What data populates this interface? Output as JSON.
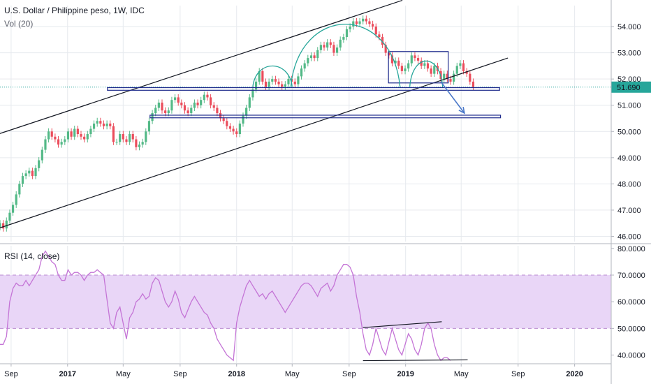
{
  "legend": {
    "title": "U.S. Dollar / Philippine peso, 1W, IDC",
    "volume": "Vol (20)",
    "rsi": "RSI (14, close)"
  },
  "colors": {
    "up": "#53b987",
    "down": "#eb4d5c",
    "channel": "#131722",
    "box": "#1e2a8c",
    "arc": "#26a69a",
    "arrow": "#4a78c9",
    "rsi": "#c474d6",
    "rsi_band": "#e9d6f7",
    "price_badge": "#26a69a",
    "grid": "#e6e9ee"
  },
  "price_badge": "51.690",
  "chart_data": [
    {
      "type": "candlestick",
      "title": "U.S. Dollar / Philippine peso, 1W, IDC",
      "x_start": "2016-08-08",
      "x_ticks": [
        {
          "date": "2016-09-01",
          "label": "Sep",
          "bold": false
        },
        {
          "date": "2017-01-01",
          "label": "2017",
          "bold": true
        },
        {
          "date": "2017-05-01",
          "label": "May",
          "bold": false
        },
        {
          "date": "2017-09-01",
          "label": "Sep",
          "bold": false
        },
        {
          "date": "2018-01-01",
          "label": "2018",
          "bold": true
        },
        {
          "date": "2018-05-01",
          "label": "May",
          "bold": false
        },
        {
          "date": "2018-09-01",
          "label": "Sep",
          "bold": false
        },
        {
          "date": "2019-01-01",
          "label": "2019",
          "bold": true
        },
        {
          "date": "2019-05-01",
          "label": "May",
          "bold": false
        },
        {
          "date": "2019-09-01",
          "label": "Sep",
          "bold": false
        },
        {
          "date": "2020-01-01",
          "label": "2020",
          "bold": true
        }
      ],
      "x_range": [
        "2016-08-08",
        "2020-03-20"
      ],
      "y_ticks": [
        "46.000",
        "47.000",
        "48.000",
        "49.000",
        "50.000",
        "51.000",
        "52.000",
        "53.000",
        "54.000"
      ],
      "ylim": [
        45.8,
        54.8
      ],
      "last_price": 51.69,
      "weekly_close": [
        46.5,
        46.3,
        46.6,
        46.9,
        47.2,
        47.6,
        48.0,
        48.3,
        48.4,
        48.5,
        48.3,
        48.6,
        48.9,
        49.3,
        49.7,
        50.0,
        49.8,
        49.7,
        49.5,
        49.6,
        49.7,
        50.0,
        49.8,
        50.1,
        49.9,
        49.8,
        49.7,
        49.9,
        50.1,
        50.3,
        50.4,
        50.3,
        50.2,
        50.3,
        50.2,
        49.6,
        49.6,
        49.9,
        49.7,
        49.6,
        49.9,
        49.7,
        49.4,
        49.5,
        49.6,
        50.0,
        50.4,
        50.7,
        50.9,
        51.1,
        50.8,
        50.7,
        50.8,
        51.2,
        51.3,
        51.1,
        51.0,
        50.8,
        50.7,
        50.9,
        51.1,
        51.0,
        51.2,
        51.4,
        51.3,
        51.0,
        50.9,
        50.7,
        50.5,
        50.4,
        50.2,
        50.1,
        50.0,
        49.9,
        50.3,
        50.6,
        50.9,
        51.3,
        51.6,
        51.9,
        52.3,
        51.9,
        51.7,
        51.9,
        52.0,
        51.9,
        51.8,
        51.7,
        51.8,
        52.0,
        51.9,
        51.8,
        52.1,
        52.4,
        52.6,
        52.8,
        52.9,
        52.8,
        53.1,
        53.3,
        53.2,
        53.4,
        53.3,
        53.0,
        53.2,
        53.5,
        53.6,
        53.9,
        54.0,
        54.2,
        54.1,
        54.2,
        54.3,
        54.2,
        54.1,
        54.0,
        53.7,
        53.6,
        53.3,
        53.0,
        52.9,
        52.6,
        52.7,
        52.5,
        52.3,
        52.4,
        52.6,
        52.9,
        52.8,
        52.7,
        52.5,
        52.6,
        52.4,
        52.2,
        52.5,
        52.3,
        52.0,
        52.2,
        52.0,
        51.9,
        52.2,
        52.5,
        52.6,
        52.3,
        52.2,
        51.9,
        51.69
      ]
    },
    {
      "type": "line",
      "title": "RSI (14, close)",
      "y_ticks": [
        "40.0000",
        "50.0000",
        "60.0000",
        "70.0000",
        "80.0000"
      ],
      "ylim": [
        37,
        81
      ],
      "band": [
        50,
        70
      ],
      "values": [
        44,
        44,
        47,
        60,
        65,
        67,
        66,
        66,
        68,
        66,
        68,
        70,
        72,
        77,
        79,
        77,
        75,
        74,
        70,
        68,
        68,
        72,
        70,
        71,
        71,
        70,
        68,
        70,
        71,
        71,
        72,
        71,
        70,
        61,
        52,
        50,
        56,
        58,
        52,
        46,
        54,
        56,
        60,
        61,
        63,
        61,
        62,
        67,
        69,
        68,
        64,
        60,
        58,
        60,
        64,
        61,
        56,
        54,
        57,
        60,
        62,
        60,
        58,
        56,
        55,
        52,
        50,
        46,
        44,
        42,
        40,
        39,
        38,
        52,
        58,
        62,
        66,
        68,
        66,
        64,
        62,
        63,
        61,
        63,
        64,
        62,
        60,
        58,
        56,
        58,
        60,
        62,
        64,
        66,
        67,
        67,
        66,
        64,
        62,
        65,
        66,
        67,
        64,
        66,
        70,
        72,
        74,
        74,
        73,
        70,
        62,
        56,
        48,
        42,
        40,
        44,
        50,
        46,
        42,
        40,
        45,
        50,
        46,
        42,
        40,
        44,
        48,
        46,
        42,
        40,
        44,
        50,
        52,
        50,
        44,
        40,
        38,
        39,
        39,
        38
      ]
    }
  ]
}
